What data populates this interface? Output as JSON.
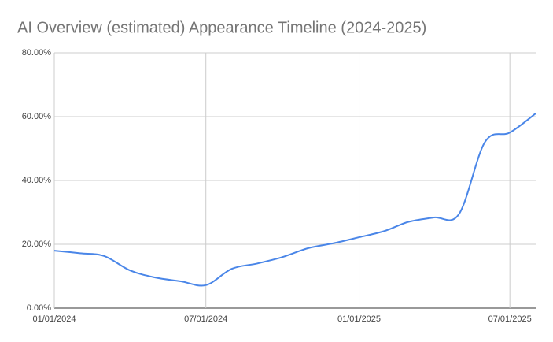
{
  "chart_data": {
    "type": "line",
    "title": "AI Overview (estimated) Appearance Timeline (2024-2025)",
    "x": [
      "01/01/2024",
      "02/01/2024",
      "03/01/2024",
      "04/01/2024",
      "05/01/2024",
      "06/01/2024",
      "07/01/2024",
      "08/01/2024",
      "09/01/2024",
      "10/01/2024",
      "11/01/2024",
      "12/01/2024",
      "01/01/2025",
      "02/01/2025",
      "03/01/2025",
      "04/01/2025",
      "05/01/2025",
      "06/01/2025",
      "07/01/2025",
      "08/01/2025"
    ],
    "series": [
      {
        "name": "AI Overview",
        "color": "#4a86e8",
        "values": [
          18,
          17.2,
          16.3,
          11.8,
          9.6,
          8.4,
          7.2,
          12.3,
          14,
          16,
          18.8,
          20.3,
          22.2,
          24.2,
          27,
          28.4,
          29.5,
          52,
          55,
          61
        ]
      }
    ],
    "xlim": [
      "01/01/2024",
      "08/01/2025"
    ],
    "xticks": [
      "01/01/2024",
      "07/01/2024",
      "01/01/2025",
      "07/01/2025"
    ],
    "ylim": [
      0,
      80
    ],
    "yticks": [
      {
        "value": 0,
        "label": "0.00%"
      },
      {
        "value": 20,
        "label": "20.00%"
      },
      {
        "value": 40,
        "label": "40.00%"
      },
      {
        "value": 60,
        "label": "60.00%"
      },
      {
        "value": 80,
        "label": "80.00%"
      }
    ],
    "grid": true
  }
}
